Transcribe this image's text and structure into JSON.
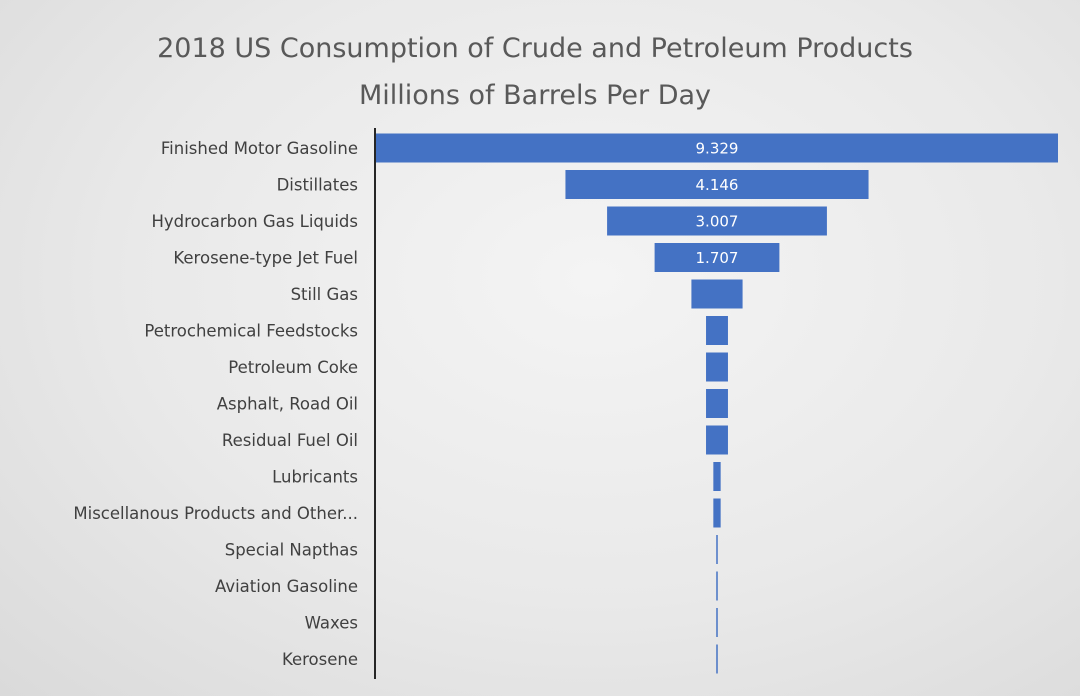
{
  "chart_data": {
    "type": "bar",
    "orientation": "horizontal",
    "layout": "funnel",
    "title": "2018 US Consumption of Crude and Petroleum Products",
    "subtitle": "Millions of Barrels Per Day",
    "categories": [
      "Finished Motor Gasoline",
      "Distillates",
      "Hydrocarbon Gas Liquids",
      "Kerosene-type Jet Fuel",
      "Still Gas",
      "Petrochemical Feedstocks",
      "Petroleum Coke",
      "Asphalt, Road Oil",
      "Residual Fuel Oil",
      "Lubricants",
      "Miscellanous Products and Other...",
      "Special Napthas",
      "Aviation Gasoline",
      "Waxes",
      "Kerosene"
    ],
    "values": [
      9.329,
      4.146,
      3.007,
      1.707,
      0.7,
      0.3,
      0.3,
      0.3,
      0.3,
      0.1,
      0.1,
      0.02,
      0.02,
      0.01,
      0.01
    ],
    "data_labels": [
      "9.329",
      "4.146",
      "3.007",
      "1.707",
      "",
      "",
      "",
      "",
      "",
      "",
      "",
      "",
      "",
      "",
      ""
    ],
    "bar_color": "#4472c4",
    "axis_color": "#262626",
    "legend": "none",
    "grid": false
  }
}
